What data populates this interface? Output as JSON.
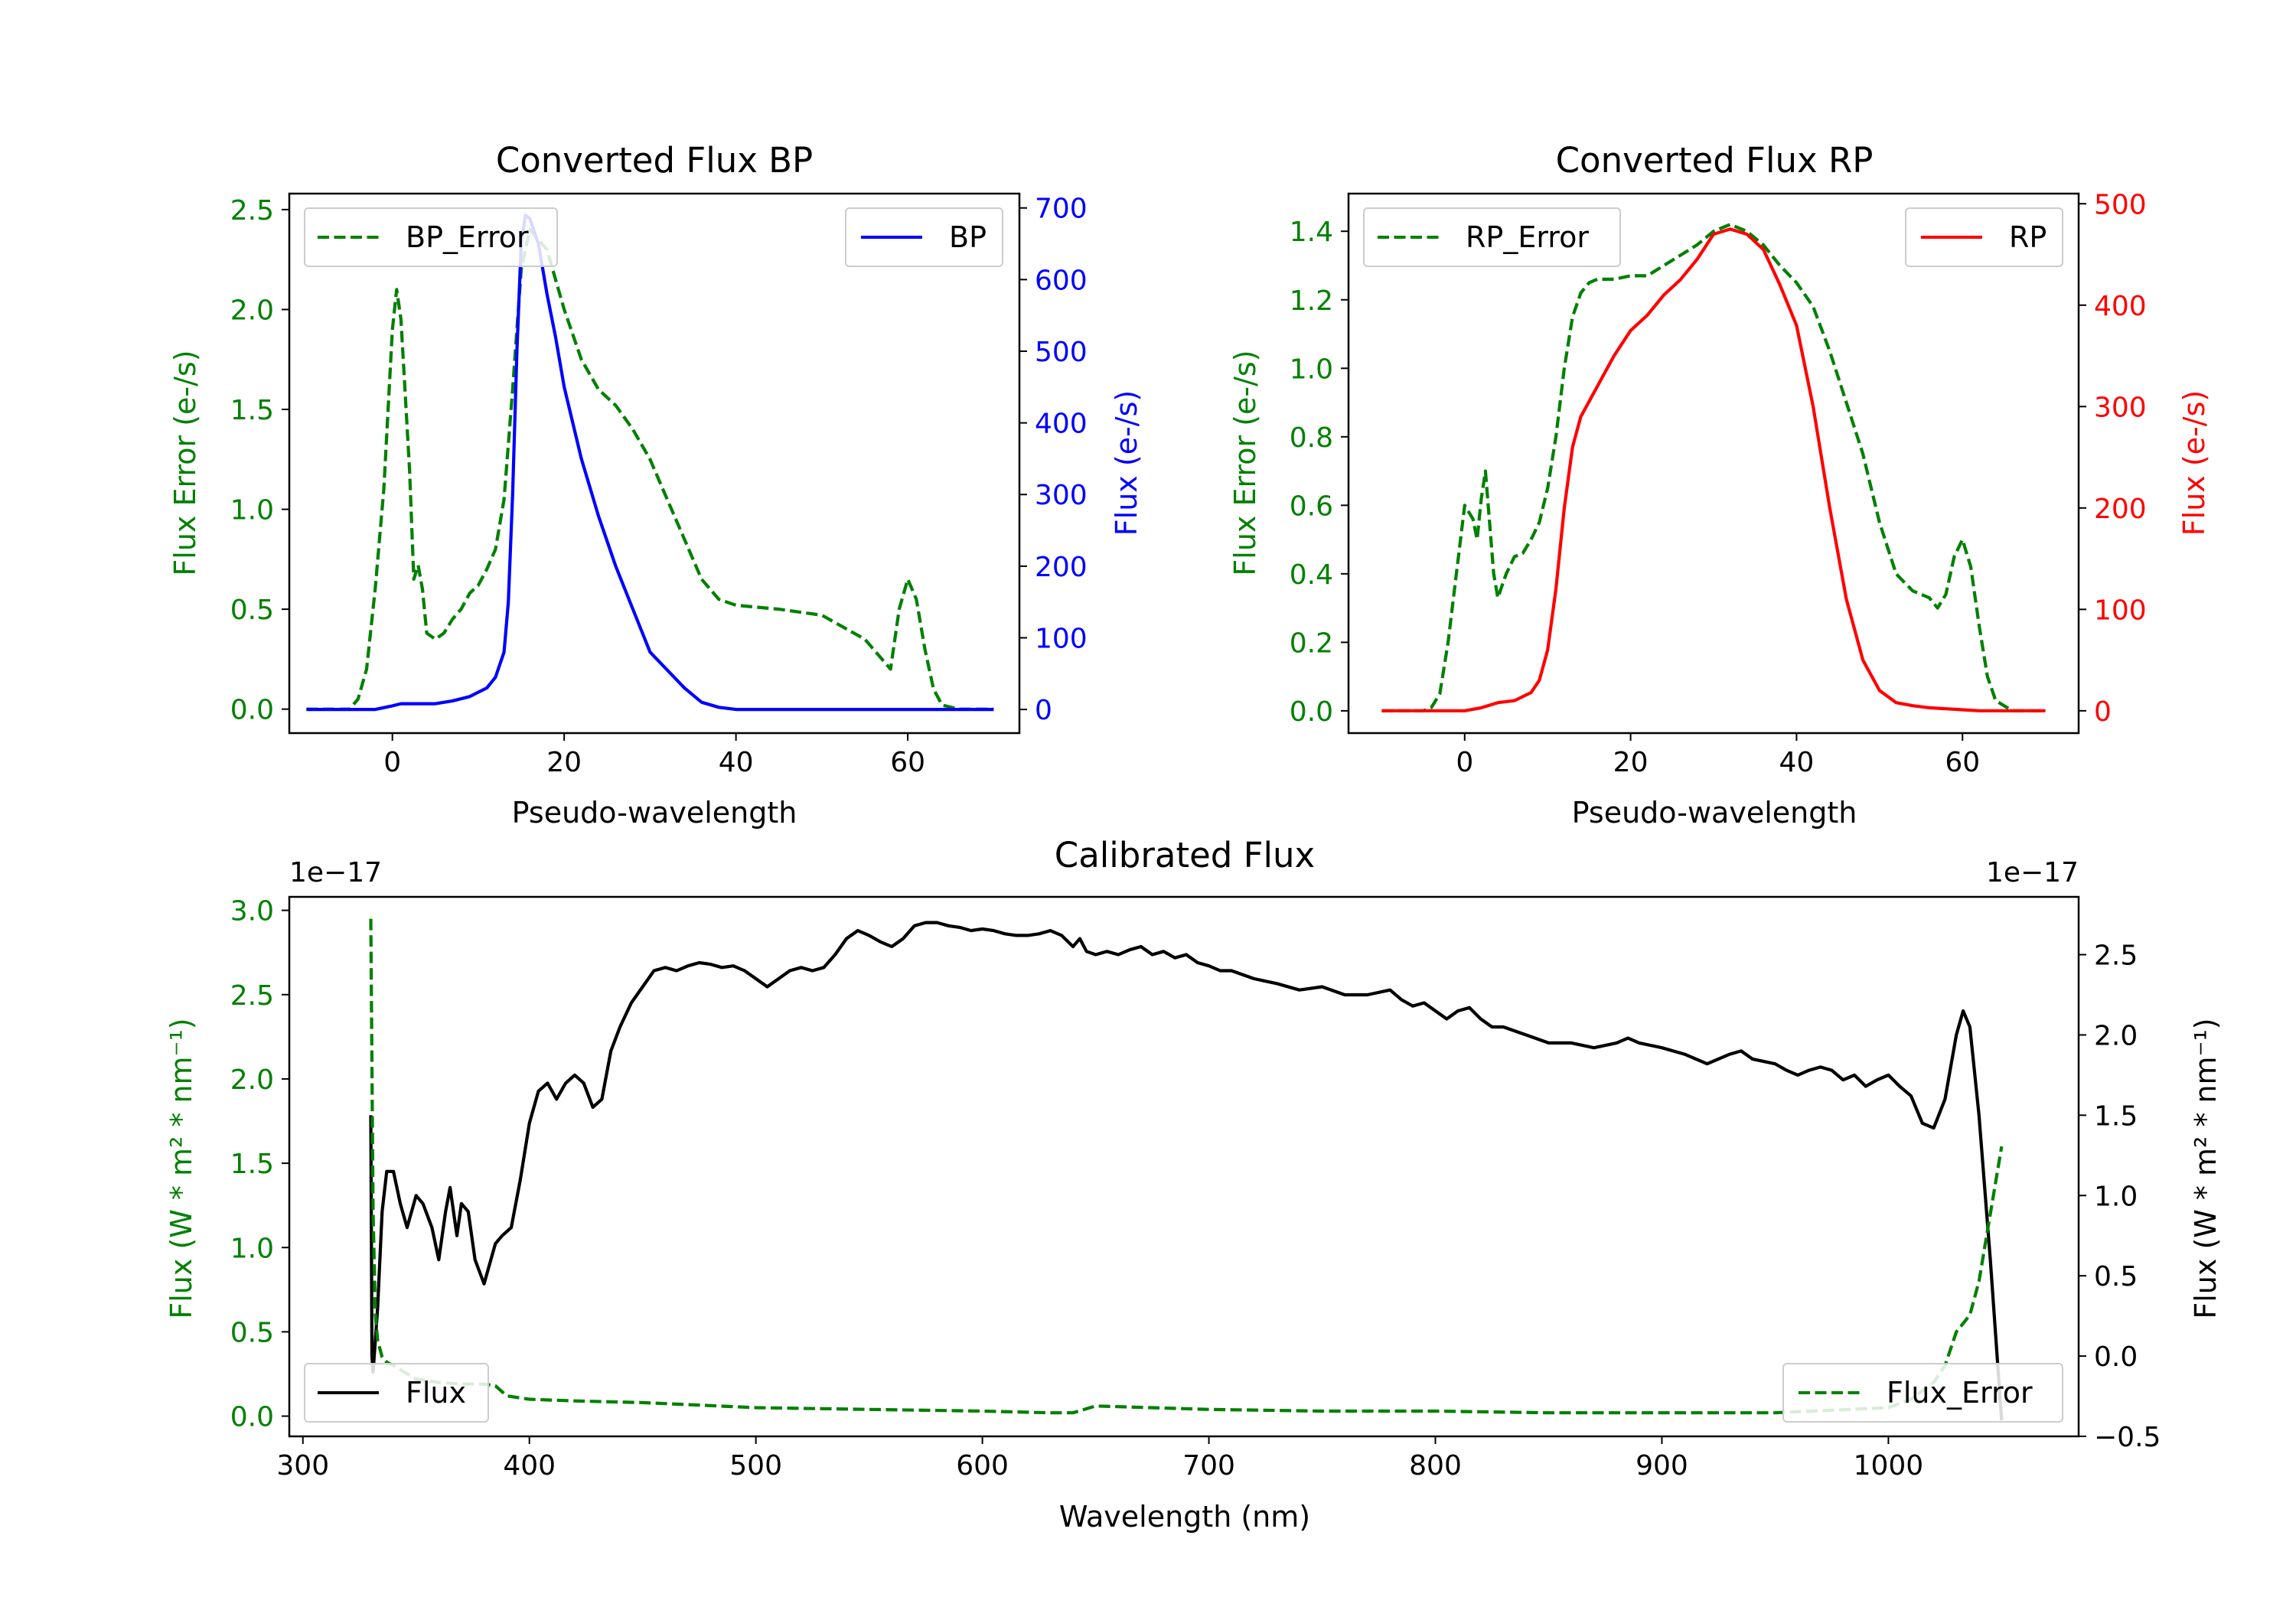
{
  "chart_data": [
    {
      "type": "line",
      "title": "Converted Flux BP",
      "xlabel": "Pseudo-wavelength",
      "ylabel_left": "Flux Error (e-/s)",
      "ylabel_right": "Flux (e-/s)",
      "xlim": [
        -12,
        73
      ],
      "ylim_left": [
        -0.12,
        2.58
      ],
      "ylim_right": [
        -33,
        720
      ],
      "xticks": [
        "0",
        "20",
        "40",
        "60"
      ],
      "yticks_left": [
        "0.0",
        "0.5",
        "1.0",
        "1.5",
        "2.0",
        "2.5"
      ],
      "yticks_right": [
        "0",
        "100",
        "200",
        "300",
        "400",
        "500",
        "600",
        "700"
      ],
      "colors": {
        "error": "#008000",
        "flux": "#0000ff"
      },
      "series": [
        {
          "name": "BP_Error",
          "axis": "left",
          "style": "dashed",
          "x": [
            -10,
            -5,
            -4,
            -3,
            -2,
            -1,
            0,
            0.5,
            1,
            2,
            2.5,
            3,
            3.5,
            4,
            5,
            6,
            7,
            8,
            9,
            10,
            11,
            12,
            13,
            14,
            15,
            15.5,
            16,
            17,
            18,
            19,
            20,
            22,
            24,
            26,
            28,
            30,
            32,
            34,
            36,
            38,
            40,
            45,
            50,
            55,
            58,
            59,
            60,
            61,
            62,
            63,
            64,
            66,
            70
          ],
          "values": [
            0,
            0,
            0.05,
            0.2,
            0.6,
            1.1,
            1.9,
            2.1,
            1.95,
            1.2,
            0.65,
            0.72,
            0.6,
            0.38,
            0.35,
            0.38,
            0.45,
            0.5,
            0.58,
            0.62,
            0.7,
            0.8,
            1.05,
            1.6,
            2.2,
            2.3,
            2.4,
            2.35,
            2.3,
            2.15,
            2.0,
            1.75,
            1.6,
            1.52,
            1.4,
            1.25,
            1.05,
            0.85,
            0.65,
            0.55,
            0.52,
            0.5,
            0.47,
            0.35,
            0.2,
            0.5,
            0.65,
            0.55,
            0.3,
            0.1,
            0.02,
            0,
            0
          ]
        },
        {
          "name": "BP",
          "axis": "right",
          "style": "solid",
          "x": [
            -10,
            -5,
            -2,
            0,
            1,
            3,
            5,
            7,
            9,
            11,
            12,
            13,
            13.5,
            14,
            14.5,
            15,
            15.5,
            16,
            17,
            18,
            19,
            20,
            22,
            24,
            26,
            28,
            30,
            32,
            34,
            36,
            38,
            40,
            45,
            50,
            55,
            60,
            65,
            70
          ],
          "values": [
            0,
            0,
            0,
            5,
            8,
            8,
            8,
            12,
            18,
            30,
            45,
            80,
            150,
            300,
            500,
            650,
            690,
            685,
            650,
            580,
            520,
            450,
            350,
            270,
            200,
            140,
            80,
            55,
            30,
            10,
            3,
            0,
            0,
            0,
            0,
            0,
            0,
            0
          ]
        }
      ],
      "legends": [
        {
          "label": "BP_Error",
          "position": "upper left"
        },
        {
          "label": "BP",
          "position": "upper right"
        }
      ]
    },
    {
      "type": "line",
      "title": "Converted Flux RP",
      "xlabel": "Pseudo-wavelength",
      "ylabel_left": "Flux Error (e-/s)",
      "ylabel_right": "Flux (e-/s)",
      "xlim": [
        -14,
        74
      ],
      "ylim_left": [
        -0.065,
        1.51
      ],
      "ylim_right": [
        -22,
        510
      ],
      "xticks": [
        "0",
        "20",
        "40",
        "60"
      ],
      "yticks_left": [
        "0.0",
        "0.2",
        "0.4",
        "0.6",
        "0.8",
        "1.0",
        "1.2",
        "1.4"
      ],
      "yticks_right": [
        "0",
        "100",
        "200",
        "300",
        "400",
        "500"
      ],
      "colors": {
        "error": "#008000",
        "flux": "#ff0000"
      },
      "series": [
        {
          "name": "RP_Error",
          "axis": "left",
          "style": "dashed",
          "x": [
            -10,
            -5,
            -4,
            -3,
            -2,
            -1,
            0,
            1,
            1.5,
            2,
            2.5,
            3,
            3.5,
            4,
            5,
            6,
            7,
            8,
            9,
            10,
            11,
            12,
            13,
            14,
            15,
            16,
            18,
            20,
            22,
            24,
            26,
            28,
            30,
            32,
            34,
            36,
            38,
            40,
            42,
            44,
            46,
            48,
            50,
            52,
            54,
            56,
            57,
            58,
            59,
            60,
            61,
            62,
            63,
            64,
            66,
            70
          ],
          "values": [
            0,
            0,
            0.01,
            0.05,
            0.2,
            0.4,
            0.6,
            0.56,
            0.5,
            0.62,
            0.7,
            0.55,
            0.4,
            0.33,
            0.4,
            0.45,
            0.46,
            0.5,
            0.55,
            0.65,
            0.8,
            1.0,
            1.15,
            1.22,
            1.25,
            1.26,
            1.26,
            1.27,
            1.27,
            1.3,
            1.33,
            1.36,
            1.4,
            1.42,
            1.4,
            1.36,
            1.3,
            1.25,
            1.18,
            1.05,
            0.9,
            0.75,
            0.55,
            0.4,
            0.35,
            0.33,
            0.3,
            0.34,
            0.45,
            0.5,
            0.42,
            0.25,
            0.1,
            0.03,
            0,
            0
          ]
        },
        {
          "name": "RP",
          "axis": "right",
          "style": "solid",
          "x": [
            -10,
            -5,
            0,
            2,
            4,
            6,
            8,
            9,
            10,
            11,
            12,
            13,
            14,
            16,
            18,
            20,
            22,
            24,
            26,
            28,
            30,
            32,
            34,
            36,
            38,
            40,
            42,
            44,
            46,
            48,
            50,
            52,
            54,
            56,
            58,
            60,
            62,
            65,
            70
          ],
          "values": [
            0,
            0,
            0,
            3,
            8,
            10,
            18,
            30,
            60,
            120,
            200,
            260,
            290,
            320,
            350,
            375,
            390,
            410,
            425,
            445,
            470,
            475,
            470,
            455,
            420,
            380,
            300,
            200,
            110,
            50,
            20,
            8,
            5,
            3,
            2,
            1,
            0,
            0,
            0
          ]
        }
      ],
      "legends": [
        {
          "label": "RP_Error",
          "position": "upper left"
        },
        {
          "label": "RP",
          "position": "upper right"
        }
      ]
    },
    {
      "type": "line",
      "title": "Calibrated Flux",
      "xlabel": "Wavelength (nm)",
      "ylabel_left": "Flux (W * m² * nm⁻¹)",
      "ylabel_right": "Flux (W * m² * nm⁻¹)",
      "offset_text_left": "1e−17",
      "offset_text_right": "1e−17",
      "xlim": [
        294,
        1084
      ],
      "ylim_left": [
        -0.12,
        3.08
      ],
      "ylim_right": [
        -0.5,
        2.86
      ],
      "xticks": [
        "300",
        "400",
        "500",
        "600",
        "700",
        "800",
        "900",
        "1000"
      ],
      "yticks_left": [
        "0.0",
        "0.5",
        "1.0",
        "1.5",
        "2.0",
        "2.5",
        "3.0"
      ],
      "yticks_right": [
        "−0.5",
        "0.0",
        "0.5",
        "1.0",
        "1.5",
        "2.0",
        "2.5"
      ],
      "colors": {
        "error": "#008000",
        "flux": "#000000"
      },
      "series": [
        {
          "name": "Flux",
          "axis": "right",
          "style": "solid",
          "x": [
            330,
            330.5,
            331,
            333,
            335,
            337,
            340,
            343,
            346,
            350,
            353,
            357,
            360,
            363,
            365,
            368,
            370,
            373,
            376,
            380,
            382,
            385,
            388,
            392,
            396,
            400,
            404,
            408,
            412,
            416,
            420,
            424,
            428,
            432,
            436,
            440,
            445,
            450,
            455,
            460,
            465,
            470,
            475,
            480,
            485,
            490,
            495,
            500,
            505,
            510,
            515,
            520,
            525,
            530,
            535,
            540,
            545,
            550,
            555,
            560,
            565,
            570,
            575,
            580,
            585,
            590,
            595,
            600,
            605,
            610,
            615,
            620,
            625,
            630,
            635,
            640,
            643,
            646,
            650,
            655,
            660,
            665,
            670,
            675,
            680,
            685,
            690,
            695,
            700,
            705,
            710,
            720,
            730,
            740,
            750,
            760,
            770,
            780,
            785,
            790,
            795,
            800,
            805,
            810,
            815,
            820,
            825,
            830,
            840,
            850,
            860,
            870,
            880,
            885,
            890,
            900,
            910,
            920,
            930,
            935,
            940,
            950,
            955,
            960,
            965,
            970,
            975,
            980,
            985,
            990,
            995,
            1000,
            1005,
            1010,
            1015,
            1020,
            1025,
            1030,
            1033,
            1036,
            1040,
            1045,
            1050
          ],
          "values": [
            1.5,
            0.0,
            -0.1,
            0.3,
            0.9,
            1.15,
            1.15,
            0.95,
            0.8,
            1.0,
            0.95,
            0.8,
            0.6,
            0.9,
            1.05,
            0.75,
            0.95,
            0.9,
            0.6,
            0.45,
            0.55,
            0.7,
            0.75,
            0.8,
            1.1,
            1.45,
            1.65,
            1.7,
            1.6,
            1.7,
            1.75,
            1.7,
            1.55,
            1.6,
            1.9,
            2.05,
            2.2,
            2.3,
            2.4,
            2.42,
            2.4,
            2.43,
            2.45,
            2.44,
            2.42,
            2.43,
            2.4,
            2.35,
            2.3,
            2.35,
            2.4,
            2.42,
            2.4,
            2.42,
            2.5,
            2.6,
            2.65,
            2.62,
            2.58,
            2.55,
            2.6,
            2.68,
            2.7,
            2.7,
            2.68,
            2.67,
            2.65,
            2.66,
            2.65,
            2.63,
            2.62,
            2.62,
            2.63,
            2.65,
            2.62,
            2.55,
            2.6,
            2.52,
            2.5,
            2.52,
            2.5,
            2.53,
            2.55,
            2.5,
            2.52,
            2.48,
            2.5,
            2.45,
            2.43,
            2.4,
            2.4,
            2.35,
            2.32,
            2.28,
            2.3,
            2.25,
            2.25,
            2.28,
            2.22,
            2.18,
            2.2,
            2.15,
            2.1,
            2.15,
            2.17,
            2.1,
            2.05,
            2.05,
            2.0,
            1.95,
            1.95,
            1.92,
            1.95,
            1.98,
            1.95,
            1.92,
            1.88,
            1.82,
            1.88,
            1.9,
            1.85,
            1.82,
            1.78,
            1.75,
            1.78,
            1.8,
            1.78,
            1.72,
            1.75,
            1.68,
            1.72,
            1.75,
            1.68,
            1.62,
            1.45,
            1.42,
            1.6,
            2.0,
            2.15,
            2.05,
            1.5,
            0.6,
            -0.4
          ]
        },
        {
          "name": "Flux_Error",
          "axis": "left",
          "style": "dashed",
          "x": [
            330,
            331,
            332,
            333,
            335,
            337,
            340,
            345,
            350,
            360,
            370,
            380,
            385,
            390,
            400,
            420,
            450,
            500,
            550,
            600,
            630,
            640,
            650,
            700,
            750,
            800,
            850,
            900,
            950,
            1000,
            1010,
            1015,
            1020,
            1025,
            1030,
            1033,
            1036,
            1040,
            1045,
            1050
          ],
          "values": [
            2.95,
            1.2,
            0.6,
            0.45,
            0.35,
            0.32,
            0.3,
            0.26,
            0.22,
            0.2,
            0.19,
            0.19,
            0.18,
            0.12,
            0.1,
            0.09,
            0.08,
            0.05,
            0.04,
            0.03,
            0.02,
            0.02,
            0.06,
            0.04,
            0.03,
            0.03,
            0.02,
            0.02,
            0.02,
            0.05,
            0.1,
            0.15,
            0.2,
            0.3,
            0.5,
            0.55,
            0.6,
            0.8,
            1.2,
            1.6
          ]
        }
      ],
      "legends": [
        {
          "label": "Flux",
          "position": "lower left"
        },
        {
          "label": "Flux_Error",
          "position": "lower right"
        }
      ]
    }
  ]
}
